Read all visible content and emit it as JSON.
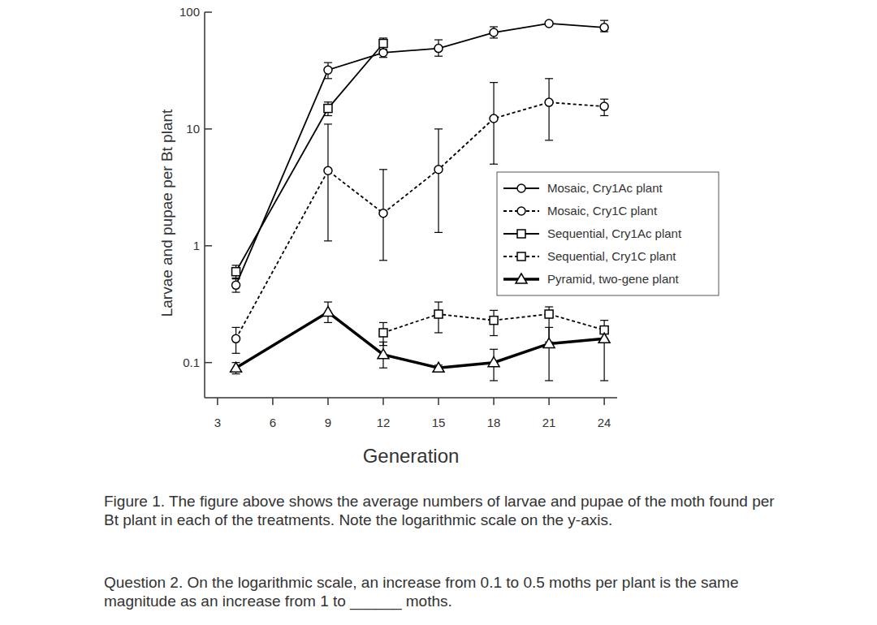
{
  "chart_data": {
    "type": "line",
    "xlabel": "Generation",
    "ylabel": "Larvae and pupae per Bt plant",
    "x": [
      4,
      9,
      12,
      15,
      18,
      21,
      24
    ],
    "xlim": [
      2.3,
      24.7
    ],
    "xticks": [
      3,
      6,
      9,
      12,
      15,
      18,
      21,
      24
    ],
    "ylim": [
      0.05,
      100
    ],
    "yticks": [
      0.1,
      1,
      10,
      100
    ],
    "log": "y",
    "grid": false,
    "legend": "right",
    "series": [
      {
        "name": "Mosaic, Cry1Ac plant",
        "color": "#000000",
        "marker": "circle",
        "line_style": "solid",
        "values": [
          0.46,
          32,
          45,
          49,
          67,
          80,
          74
        ],
        "lower": [
          0.4,
          27,
          41,
          42,
          60,
          78,
          68
        ],
        "upper": [
          0.53,
          37,
          50,
          58,
          75,
          83,
          85
        ]
      },
      {
        "name": "Mosaic, Cry1C plant",
        "color": "#000000",
        "marker": "circle",
        "line_style": "dashed",
        "values": [
          0.16,
          4.4,
          1.9,
          4.5,
          12.3,
          16.9,
          15.6
        ],
        "lower": [
          0.12,
          1.1,
          0.75,
          1.3,
          5,
          8,
          13
        ],
        "upper": [
          0.2,
          11,
          4.5,
          10,
          25,
          27,
          18
        ]
      },
      {
        "name": "Sequential, Cry1Ac plant",
        "color": "#000000",
        "marker": "square",
        "line_style": "solid",
        "values": [
          0.6,
          15,
          54,
          null,
          null,
          null,
          null
        ],
        "lower": [
          0.52,
          13,
          48,
          null,
          null,
          null,
          null
        ],
        "upper": [
          0.68,
          17,
          60,
          null,
          null,
          null,
          null
        ]
      },
      {
        "name": "Sequential, Cry1C plant",
        "color": "#000000",
        "marker": "square",
        "line_style": "dashed",
        "values": [
          null,
          null,
          0.18,
          0.26,
          0.23,
          0.26,
          0.19
        ],
        "lower": [
          null,
          null,
          0.14,
          0.18,
          0.17,
          0.15,
          0.16
        ],
        "upper": [
          null,
          null,
          0.22,
          0.33,
          0.28,
          0.3,
          0.23
        ]
      },
      {
        "name": "Pyramid, two-gene plant",
        "color": "#000000",
        "marker": "triangle",
        "line_style": "thick",
        "values": [
          0.09,
          0.27,
          0.117,
          0.09,
          0.1,
          0.145,
          0.16
        ],
        "lower": [
          0.08,
          0.22,
          0.09,
          0.085,
          0.07,
          0.07,
          0.07
        ],
        "upper": [
          0.1,
          0.33,
          0.15,
          0.095,
          0.13,
          0.2,
          0.19
        ]
      }
    ]
  },
  "caption": "Figure 1. The figure above shows the average numbers of larvae and pupae of the moth found per Bt plant in each of the treatments. Note the logarithmic scale on the y-axis.",
  "question": "Question 2. On the logarithmic scale, an increase from 0.1 to 0.5 moths per plant is the same magnitude as an increase from 1 to ______ moths."
}
